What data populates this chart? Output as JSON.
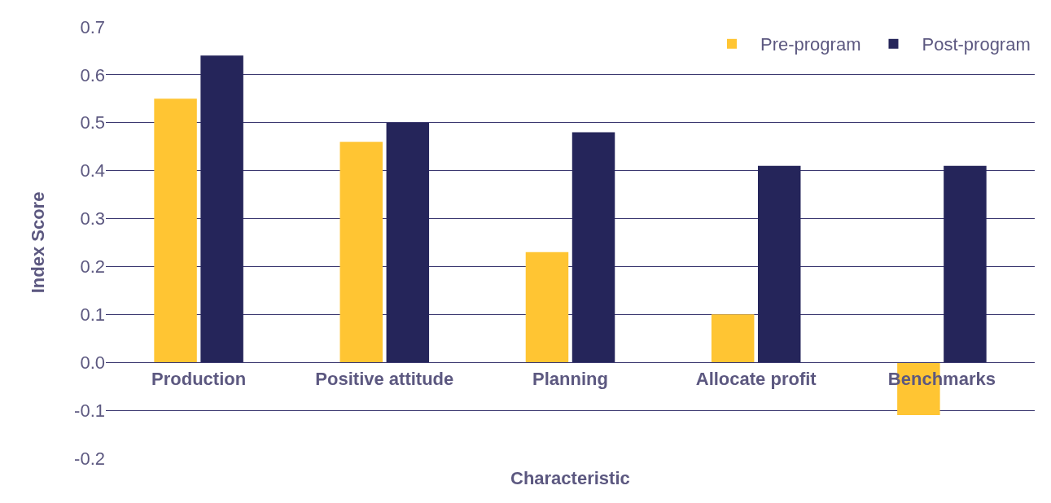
{
  "chart_data": {
    "type": "bar",
    "xlabel": "Characteristic",
    "ylabel": "Index Score",
    "categories": [
      "Production",
      "Positive attitude",
      "Planning",
      "Allocate profit",
      "Benchmarks"
    ],
    "series": [
      {
        "name": "Pre-program",
        "color": "#ffc533",
        "values": [
          0.55,
          0.46,
          0.23,
          0.1,
          -0.11
        ]
      },
      {
        "name": "Post-program",
        "color": "#25255a",
        "values": [
          0.64,
          0.5,
          0.48,
          0.41,
          0.41
        ]
      }
    ],
    "ylim": [
      -0.2,
      0.7
    ],
    "yticks": [
      {
        "value": -0.2,
        "label": "-0.2"
      },
      {
        "value": -0.1,
        "label": "-0.1"
      },
      {
        "value": 0,
        "label": "0.0"
      },
      {
        "value": 0.1,
        "label": "0.1"
      },
      {
        "value": 0.2,
        "label": "0.2"
      },
      {
        "value": 0.3,
        "label": "0.3"
      },
      {
        "value": 0.4,
        "label": "0.4"
      },
      {
        "value": 0.5,
        "label": "0.5"
      },
      {
        "value": 0.6,
        "label": "0.6"
      },
      {
        "value": 0.7,
        "label": "0.7"
      }
    ],
    "grid": "y",
    "legend": "top right"
  }
}
